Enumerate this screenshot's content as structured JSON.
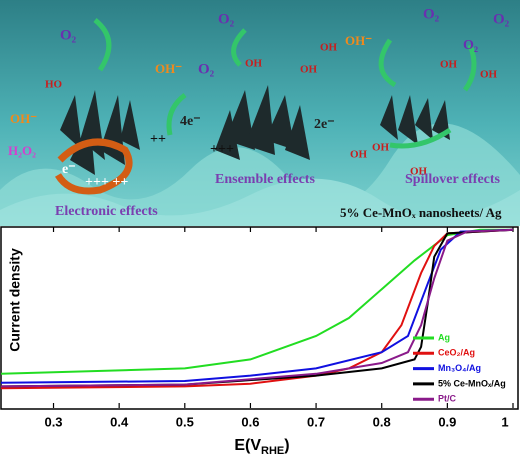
{
  "illustration": {
    "labels": [
      {
        "text": "O₂",
        "color": "#6a2fb0"
      },
      {
        "text": "O₂",
        "color": "#6a2fb0"
      },
      {
        "text": "O₂",
        "color": "#6a2fb0"
      },
      {
        "text": "O₂",
        "color": "#6a2fb0"
      },
      {
        "text": "O₂",
        "color": "#6a2fb0"
      },
      {
        "text": "O₂",
        "color": "#6a2fb0"
      },
      {
        "text": "OH⁻",
        "color": "#f08a1c"
      },
      {
        "text": "OH⁻",
        "color": "#f08a1c"
      },
      {
        "text": "OH⁻",
        "color": "#f08a1c"
      },
      {
        "text": "4e⁻",
        "color": "#222"
      },
      {
        "text": "2e⁻",
        "color": "#222"
      },
      {
        "text": "H₂O₂",
        "color": "#d43fd0"
      },
      {
        "text": "e⁻",
        "color": "#fff"
      },
      {
        "text": "HO",
        "color": "#c81e1e"
      },
      {
        "text": "OH",
        "color": "#c81e1e"
      },
      {
        "text": "OH",
        "color": "#c81e1e"
      },
      {
        "text": "OH",
        "color": "#c81e1e"
      },
      {
        "text": "OH",
        "color": "#c81e1e"
      },
      {
        "text": "OH",
        "color": "#c81e1e"
      },
      {
        "text": "OH",
        "color": "#c81e1e"
      },
      {
        "text": "OH",
        "color": "#c81e1e"
      },
      {
        "text": "OH",
        "color": "#c81e1e"
      },
      {
        "text": "+++ ++",
        "color": "#fff"
      },
      {
        "text": "++",
        "color": "#111"
      },
      {
        "text": "+++",
        "color": "#111"
      },
      {
        "text": "Electronic effects",
        "color": "#7a3fb0"
      },
      {
        "text": "Ensemble effects",
        "color": "#7a3fb0"
      },
      {
        "text": "Spillover effects",
        "color": "#7a3fb0"
      },
      {
        "text": "5% Ce-MnOₓ nanosheets/ Ag",
        "color": "#111"
      }
    ]
  },
  "chart_data": {
    "type": "line",
    "y_label": "Current density",
    "x_label": [
      "E(V",
      "RHE",
      ")"
    ],
    "xlim": [
      0.22,
      1.0
    ],
    "xticks": [
      0.3,
      0.4,
      0.5,
      0.6,
      0.7,
      0.8,
      0.9,
      1.0
    ],
    "ylim": [
      0,
      1
    ],
    "legend": "lower right",
    "series": [
      {
        "name": "Ag",
        "color": "#22dd22",
        "x": [
          0.22,
          0.5,
          0.6,
          0.7,
          0.75,
          0.8,
          0.85,
          0.9,
          0.95,
          1.0
        ],
        "values": [
          0.19,
          0.22,
          0.27,
          0.4,
          0.5,
          0.66,
          0.82,
          0.96,
          0.99,
          0.99
        ]
      },
      {
        "name": "CeO₂/Ag",
        "color": "#e01010",
        "x": [
          0.22,
          0.5,
          0.6,
          0.7,
          0.75,
          0.8,
          0.83,
          0.86,
          0.88,
          0.9,
          1.0
        ],
        "values": [
          0.11,
          0.12,
          0.135,
          0.18,
          0.22,
          0.31,
          0.46,
          0.75,
          0.9,
          0.97,
          0.99
        ]
      },
      {
        "name": "Mn₃O₄/Ag",
        "color": "#1010e0",
        "x": [
          0.22,
          0.5,
          0.6,
          0.7,
          0.8,
          0.84,
          0.87,
          0.89,
          0.92,
          1.0
        ],
        "values": [
          0.14,
          0.15,
          0.18,
          0.22,
          0.31,
          0.4,
          0.69,
          0.88,
          0.98,
          0.99
        ]
      },
      {
        "name": "5% Ce-MnOₓ/Ag",
        "color": "#000000",
        "x": [
          0.22,
          0.5,
          0.7,
          0.8,
          0.85,
          0.86,
          0.87,
          0.88,
          0.9,
          1.0
        ],
        "values": [
          0.12,
          0.13,
          0.18,
          0.22,
          0.27,
          0.34,
          0.58,
          0.84,
          0.97,
          0.99
        ]
      },
      {
        "name": "Pt/C",
        "color": "#8a1a8a",
        "x": [
          0.22,
          0.5,
          0.7,
          0.8,
          0.84,
          0.86,
          0.88,
          0.9,
          0.93,
          1.0
        ],
        "values": [
          0.12,
          0.13,
          0.19,
          0.25,
          0.31,
          0.46,
          0.72,
          0.93,
          0.98,
          0.99
        ]
      }
    ]
  }
}
